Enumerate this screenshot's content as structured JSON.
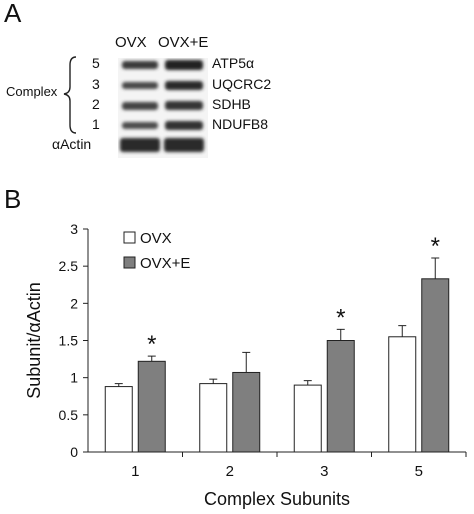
{
  "panel_a": {
    "letter": "A",
    "lanes": [
      "OVX",
      "OVX+E"
    ],
    "rows": [
      {
        "number": "5",
        "protein": "ATP5α"
      },
      {
        "number": "3",
        "protein": "UQCRC2"
      },
      {
        "number": "2",
        "protein": "SDHB"
      },
      {
        "number": "1",
        "protein": "NDUFB8"
      }
    ],
    "complex_label": "Complex",
    "actin_label": "αActin"
  },
  "panel_b": {
    "letter": "B"
  },
  "chart_data": {
    "type": "bar",
    "categories": [
      "1",
      "2",
      "3",
      "5"
    ],
    "series": [
      {
        "name": "OVX",
        "color": "#ffffff",
        "values": [
          0.88,
          0.92,
          0.9,
          1.55
        ],
        "errors": [
          0.04,
          0.06,
          0.06,
          0.15
        ]
      },
      {
        "name": "OVX+E",
        "color": "#7f7f7f",
        "values": [
          1.22,
          1.07,
          1.5,
          2.33
        ],
        "errors": [
          0.07,
          0.27,
          0.15,
          0.28
        ]
      }
    ],
    "significance": [
      {
        "category": "1",
        "series": "OVX+E",
        "marker": "*"
      },
      {
        "category": "3",
        "series": "OVX+E",
        "marker": "*"
      },
      {
        "category": "5",
        "series": "OVX+E",
        "marker": "*"
      }
    ],
    "xlabel": "Complex Subunits",
    "ylabel": "Subunit/αActin",
    "ylim": [
      0,
      3
    ],
    "yticks": [
      "0",
      "0.5",
      "1",
      "1.5",
      "2",
      "2.5",
      "3"
    ],
    "legend_position": "top-left",
    "grid": false
  }
}
